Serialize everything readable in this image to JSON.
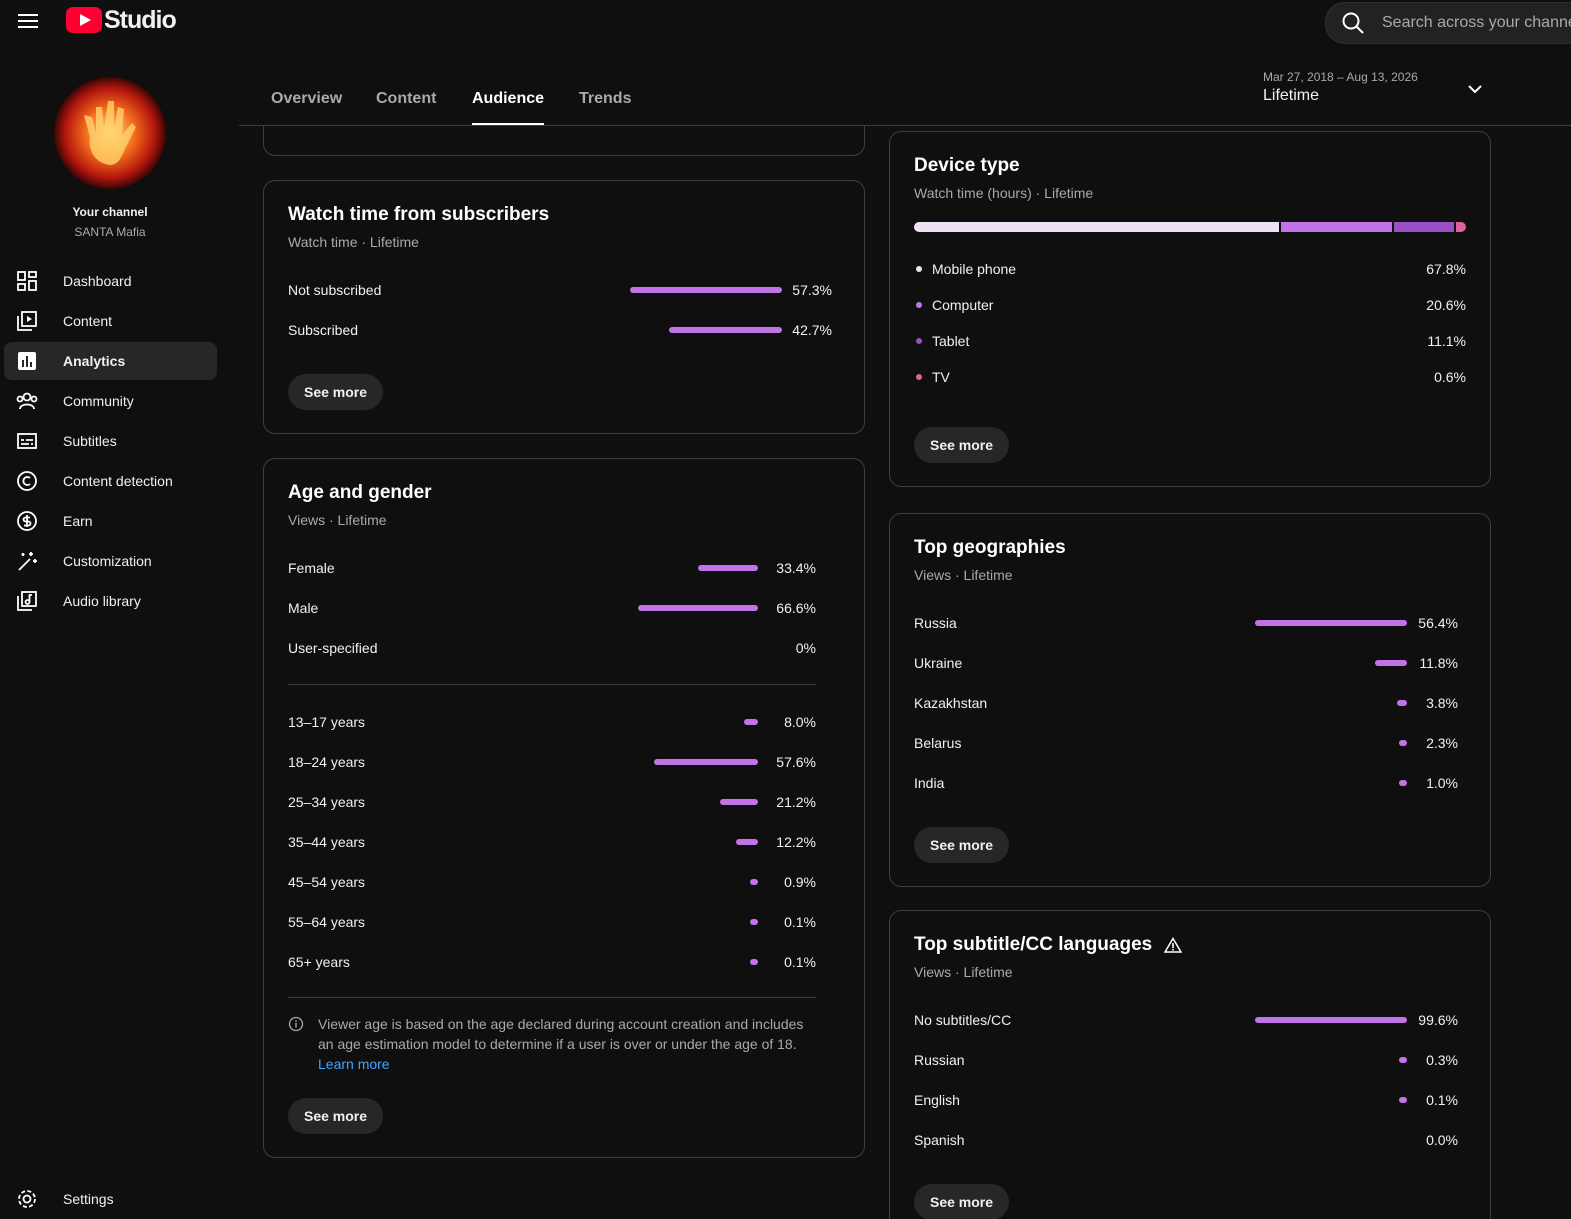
{
  "header": {
    "logo_text": "Studio",
    "search_placeholder": "Search across your channel"
  },
  "channel": {
    "label": "Your channel",
    "name": "SANTA Mafia"
  },
  "nav": [
    "Dashboard",
    "Content",
    "Analytics",
    "Community",
    "Subtitles",
    "Content detection",
    "Earn",
    "Customization",
    "Audio library"
  ],
  "settings": "Settings",
  "tabs": [
    "Overview",
    "Content",
    "Audience",
    "Trends"
  ],
  "date_range": {
    "range": "Mar 27, 2018 – Aug 13, 2026",
    "period": "Lifetime"
  },
  "bar_color": "#c174e8",
  "watch_time": {
    "title": "Watch time from subscribers",
    "subtitle": "Watch time · Lifetime",
    "rows": [
      {
        "label": "Not subscribed",
        "value": 57.3,
        "value_label": "57.3%"
      },
      {
        "label": "Subscribed",
        "value": 42.7,
        "value_label": "42.7%"
      }
    ],
    "button": "See more"
  },
  "age_gender": {
    "title": "Age and gender",
    "subtitle": "Views · Lifetime",
    "gender": [
      {
        "label": "Female",
        "value": 33.4,
        "value_label": "33.4%"
      },
      {
        "label": "Male",
        "value": 66.6,
        "value_label": "66.6%"
      },
      {
        "label": "User-specified",
        "value": 0,
        "value_label": "0%"
      }
    ],
    "ages": [
      {
        "label": "13–17 years",
        "value": 8.0,
        "value_label": "8.0%"
      },
      {
        "label": "18–24 years",
        "value": 57.6,
        "value_label": "57.6%"
      },
      {
        "label": "25–34 years",
        "value": 21.2,
        "value_label": "21.2%"
      },
      {
        "label": "35–44 years",
        "value": 12.2,
        "value_label": "12.2%"
      },
      {
        "label": "45–54 years",
        "value": 0.9,
        "value_label": "0.9%"
      },
      {
        "label": "55–64 years",
        "value": 0.1,
        "value_label": "0.1%"
      },
      {
        "label": "65+ years",
        "value": 0.1,
        "value_label": "0.1%"
      }
    ],
    "note": "Viewer age is based on the age declared during account creation and includes an age estimation model to determine if a user is over or under the age of 18.",
    "link": "Learn more",
    "button": "See more"
  },
  "device_type": {
    "title": "Device type",
    "subtitle": "Watch time (hours) · Lifetime",
    "rows": [
      {
        "label": "Mobile phone",
        "value": 67.8,
        "value_label": "67.8%",
        "color": "#ede1f4"
      },
      {
        "label": "Computer",
        "value": 20.6,
        "value_label": "20.6%",
        "color": "#c174e8"
      },
      {
        "label": "Tablet",
        "value": 11.1,
        "value_label": "11.1%",
        "color": "#9a4fc9"
      },
      {
        "label": "TV",
        "value": 0.6,
        "value_label": "0.6%",
        "color": "#e0619c"
      }
    ],
    "button": "See more"
  },
  "geographies": {
    "title": "Top geographies",
    "subtitle": "Views · Lifetime",
    "rows": [
      {
        "label": "Russia",
        "value": 56.4,
        "value_label": "56.4%"
      },
      {
        "label": "Ukraine",
        "value": 11.8,
        "value_label": "11.8%"
      },
      {
        "label": "Kazakhstan",
        "value": 3.8,
        "value_label": "3.8%"
      },
      {
        "label": "Belarus",
        "value": 2.3,
        "value_label": "2.3%"
      },
      {
        "label": "India",
        "value": 1.0,
        "value_label": "1.0%"
      }
    ],
    "button": "See more"
  },
  "subtitles": {
    "title": "Top subtitle/CC languages",
    "subtitle": "Views · Lifetime",
    "rows": [
      {
        "label": "No subtitles/CC",
        "value": 99.6,
        "value_label": "99.6%"
      },
      {
        "label": "Russian",
        "value": 0.3,
        "value_label": "0.3%"
      },
      {
        "label": "English",
        "value": 0.1,
        "value_label": "0.1%"
      },
      {
        "label": "Spanish",
        "value": 0.0,
        "value_label": "0.0%"
      }
    ],
    "button": "See more"
  }
}
